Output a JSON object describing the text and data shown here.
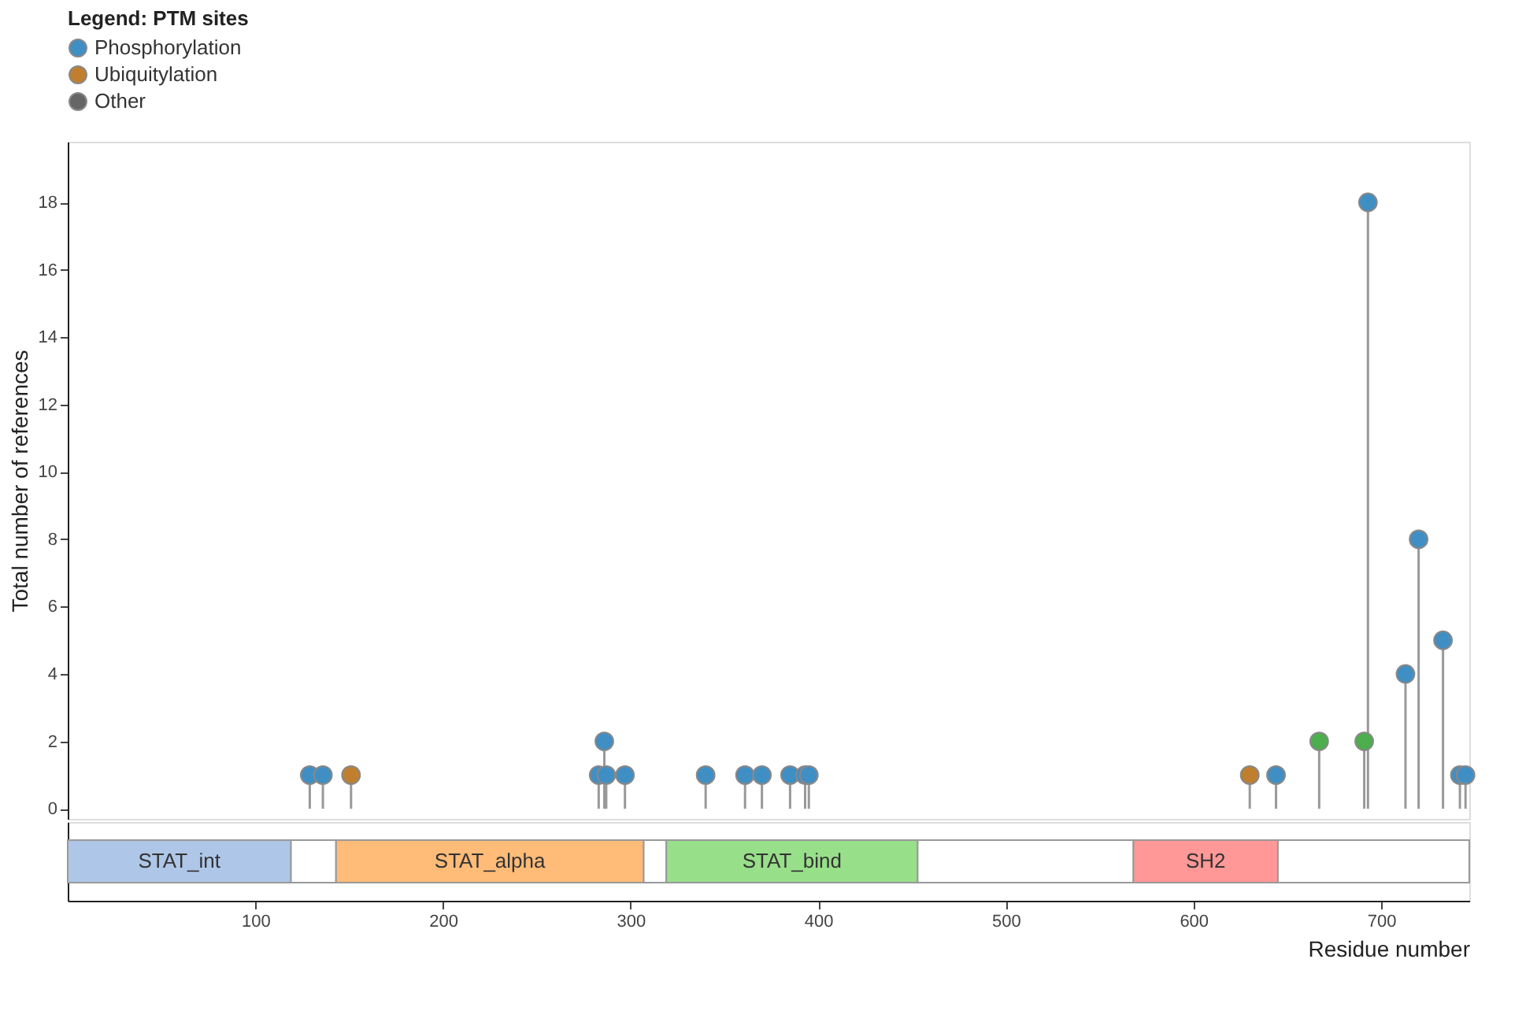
{
  "chart_data": [
    {
      "type": "lollipop",
      "ylabel": "Total number of references",
      "legend_title": "Legend: PTM sites",
      "legend": "top",
      "marker": "circle",
      "grid": false,
      "tick_labels": "y",
      "xlim": [
        0,
        747
      ],
      "ylim": [
        -0.3,
        19.8
      ],
      "yticks": [
        0,
        2,
        4,
        6,
        8,
        10,
        12,
        14,
        16,
        18
      ],
      "series": [
        {
          "name": "Phosphorylation",
          "color": "#3f8fc5",
          "x": [
            129,
            136,
            283,
            286,
            287,
            297,
            340,
            361,
            370,
            385,
            393,
            395,
            644,
            693,
            713,
            720,
            733,
            742,
            745
          ],
          "values": [
            1,
            1,
            1,
            2,
            1,
            1,
            1,
            1,
            1,
            1,
            1,
            1,
            1,
            18,
            4,
            8,
            5,
            1,
            1
          ]
        },
        {
          "name": "Ubiquitylation",
          "color": "#c07f2e",
          "x": [
            151,
            630
          ],
          "values": [
            1,
            1
          ]
        },
        {
          "name": "Other",
          "color": "#666666"
        },
        {
          "color": "#4cae4c",
          "x": [
            667,
            691
          ],
          "values": [
            2,
            2
          ]
        }
      ]
    },
    {
      "type": "bar",
      "orientation": "horizontal",
      "stacked": true,
      "xlabel": "Residue number",
      "tick_labels": "x",
      "categories": [
        null
      ],
      "xlim": [
        0,
        747
      ],
      "xticks": [
        100,
        200,
        300,
        400,
        500,
        600,
        700
      ],
      "series": [
        {
          "name": "STAT_int",
          "color": "#aec7e8",
          "values": [
            119
          ]
        },
        {
          "color": "#ffffff",
          "values": [
            24
          ]
        },
        {
          "name": "STAT_alpha",
          "color": "#ffbb78",
          "values": [
            164
          ]
        },
        {
          "color": "#ffffff",
          "values": [
            12
          ]
        },
        {
          "name": "STAT_bind",
          "color": "#98df8a",
          "values": [
            134
          ]
        },
        {
          "color": "#ffffff",
          "values": [
            115
          ]
        },
        {
          "name": "SH2",
          "color": "#ff9896",
          "values": [
            77
          ]
        },
        {
          "color": "#ffffff",
          "values": [
            102
          ]
        }
      ]
    }
  ]
}
